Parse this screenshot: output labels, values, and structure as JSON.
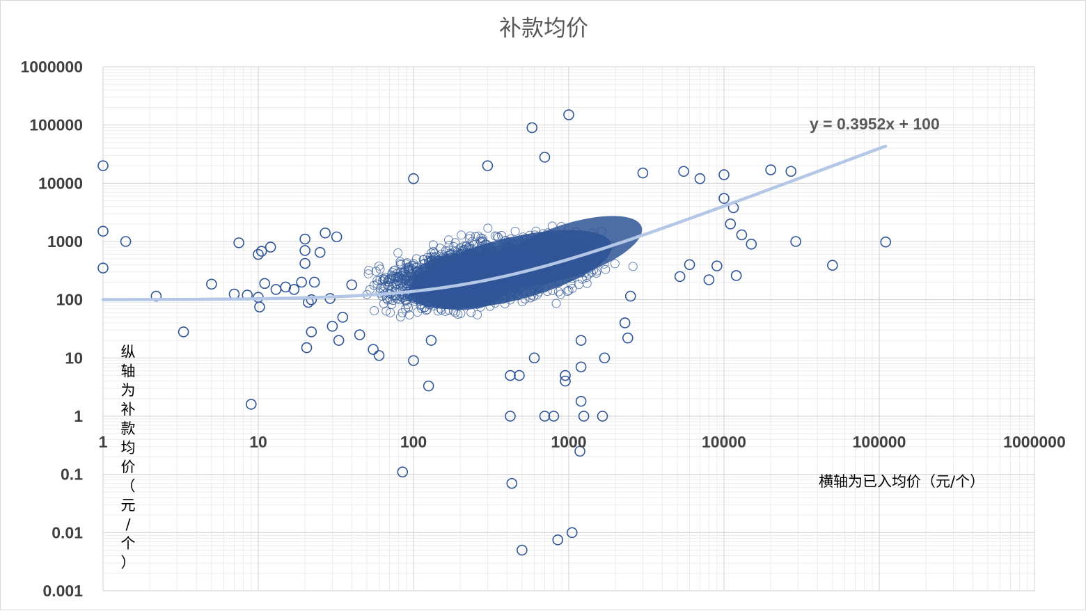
{
  "chart_data": {
    "type": "scatter",
    "title": "补款均价",
    "xlabel": "横轴为已入均价（元/个）",
    "ylabel": "纵轴为补款均价（元/个）",
    "x_scale": "log",
    "y_scale": "log",
    "xlim": [
      1,
      1000000
    ],
    "ylim": [
      0.001,
      1000000
    ],
    "x_ticks": [
      "1",
      "10",
      "100",
      "1000",
      "10000",
      "100000",
      "1000000"
    ],
    "y_ticks": [
      "1000000",
      "100000",
      "10000",
      "1000",
      "100",
      "10",
      "1",
      "0.1",
      "0.01",
      "0.001"
    ],
    "grid": true,
    "legend": "none",
    "marker_color": "#2f5597",
    "trendline": {
      "type": "linear",
      "equation": "y = 0.3952x + 100",
      "slope": 0.3952,
      "intercept": 100,
      "x_range": [
        1,
        110000
      ],
      "color": "#b4c7e7"
    },
    "cluster": {
      "x_center": 300,
      "y_center": 300,
      "x_range": [
        50,
        3000
      ],
      "y_range": [
        20,
        5000
      ]
    },
    "points": [
      {
        "x": 1,
        "y": 20000
      },
      {
        "x": 1,
        "y": 1500
      },
      {
        "x": 1,
        "y": 350
      },
      {
        "x": 1.4,
        "y": 1000
      },
      {
        "x": 2.2,
        "y": 115
      },
      {
        "x": 3.3,
        "y": 28
      },
      {
        "x": 5,
        "y": 185
      },
      {
        "x": 7,
        "y": 125
      },
      {
        "x": 7.5,
        "y": 950
      },
      {
        "x": 8.5,
        "y": 120
      },
      {
        "x": 9,
        "y": 1.6
      },
      {
        "x": 10,
        "y": 600
      },
      {
        "x": 10,
        "y": 110
      },
      {
        "x": 10.2,
        "y": 75
      },
      {
        "x": 10.5,
        "y": 680
      },
      {
        "x": 11,
        "y": 190
      },
      {
        "x": 12,
        "y": 800
      },
      {
        "x": 13,
        "y": 150
      },
      {
        "x": 15,
        "y": 165
      },
      {
        "x": 17,
        "y": 150
      },
      {
        "x": 19,
        "y": 200
      },
      {
        "x": 20,
        "y": 1100
      },
      {
        "x": 20,
        "y": 700
      },
      {
        "x": 20,
        "y": 420
      },
      {
        "x": 20.5,
        "y": 15
      },
      {
        "x": 21,
        "y": 90
      },
      {
        "x": 22,
        "y": 100
      },
      {
        "x": 22,
        "y": 28
      },
      {
        "x": 23,
        "y": 200
      },
      {
        "x": 25,
        "y": 650
      },
      {
        "x": 27,
        "y": 1400
      },
      {
        "x": 29,
        "y": 105
      },
      {
        "x": 30,
        "y": 35
      },
      {
        "x": 32,
        "y": 1200
      },
      {
        "x": 33,
        "y": 20
      },
      {
        "x": 35,
        "y": 50
      },
      {
        "x": 40,
        "y": 180
      },
      {
        "x": 45,
        "y": 25
      },
      {
        "x": 55,
        "y": 14
      },
      {
        "x": 60,
        "y": 11
      },
      {
        "x": 85,
        "y": 0.11
      },
      {
        "x": 100,
        "y": 12000
      },
      {
        "x": 100,
        "y": 9
      },
      {
        "x": 125,
        "y": 3.3
      },
      {
        "x": 130,
        "y": 20
      },
      {
        "x": 300,
        "y": 20000
      },
      {
        "x": 420,
        "y": 1
      },
      {
        "x": 420,
        "y": 5
      },
      {
        "x": 430,
        "y": 0.07
      },
      {
        "x": 480,
        "y": 5
      },
      {
        "x": 500,
        "y": 0.005
      },
      {
        "x": 580,
        "y": 90000
      },
      {
        "x": 600,
        "y": 10
      },
      {
        "x": 700,
        "y": 1
      },
      {
        "x": 700,
        "y": 28000
      },
      {
        "x": 800,
        "y": 1
      },
      {
        "x": 850,
        "y": 0.0075
      },
      {
        "x": 950,
        "y": 4
      },
      {
        "x": 950,
        "y": 5
      },
      {
        "x": 1000,
        "y": 150000
      },
      {
        "x": 1050,
        "y": 0.01
      },
      {
        "x": 1180,
        "y": 0.25
      },
      {
        "x": 1200,
        "y": 1.8
      },
      {
        "x": 1200,
        "y": 7
      },
      {
        "x": 1200,
        "y": 20
      },
      {
        "x": 1250,
        "y": 1
      },
      {
        "x": 1650,
        "y": 1
      },
      {
        "x": 1700,
        "y": 10
      },
      {
        "x": 2300,
        "y": 40
      },
      {
        "x": 2400,
        "y": 22
      },
      {
        "x": 2500,
        "y": 115
      },
      {
        "x": 3000,
        "y": 15000
      },
      {
        "x": 5200,
        "y": 250
      },
      {
        "x": 5500,
        "y": 16000
      },
      {
        "x": 6000,
        "y": 400
      },
      {
        "x": 7000,
        "y": 12000
      },
      {
        "x": 8000,
        "y": 220
      },
      {
        "x": 9000,
        "y": 380
      },
      {
        "x": 10000,
        "y": 14000
      },
      {
        "x": 10000,
        "y": 5500
      },
      {
        "x": 11000,
        "y": 2000
      },
      {
        "x": 11500,
        "y": 3800
      },
      {
        "x": 12000,
        "y": 260
      },
      {
        "x": 13000,
        "y": 1300
      },
      {
        "x": 15000,
        "y": 900
      },
      {
        "x": 20000,
        "y": 17000
      },
      {
        "x": 27000,
        "y": 16000
      },
      {
        "x": 29000,
        "y": 1000
      },
      {
        "x": 50000,
        "y": 390
      },
      {
        "x": 110000,
        "y": 980
      }
    ]
  }
}
